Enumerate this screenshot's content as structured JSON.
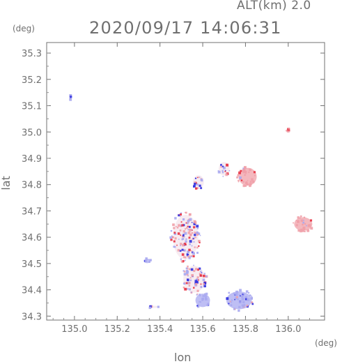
{
  "header": {
    "altitude_label": "ALT(km)  2.0",
    "timestamp": "2020/09/17 14:06:31"
  },
  "chart_data": {
    "type": "heatmap",
    "title": "2020/09/17 14:06:31",
    "xlabel": "lon",
    "ylabel": "lat",
    "x_unit": "(deg)",
    "y_unit": "(deg)",
    "xlim": [
      134.87,
      136.17
    ],
    "ylim": [
      34.285,
      35.34
    ],
    "xticks": [
      {
        "value": 135.0,
        "label": "135.0"
      },
      {
        "value": 135.2,
        "label": "135.2"
      },
      {
        "value": 135.4,
        "label": "135.4"
      },
      {
        "value": 135.6,
        "label": "135.6"
      },
      {
        "value": 135.8,
        "label": "135.8"
      },
      {
        "value": 136.0,
        "label": "136.0"
      }
    ],
    "yticks": [
      {
        "value": 34.3,
        "label": "34.3"
      },
      {
        "value": 34.4,
        "label": "34.4"
      },
      {
        "value": 34.5,
        "label": "34.5"
      },
      {
        "value": 34.6,
        "label": "34.6"
      },
      {
        "value": 34.7,
        "label": "34.7"
      },
      {
        "value": 34.8,
        "label": "34.8"
      },
      {
        "value": 34.9,
        "label": "34.9"
      },
      {
        "value": 35.0,
        "label": "35.0"
      },
      {
        "value": 35.1,
        "label": "35.1"
      },
      {
        "value": 35.2,
        "label": "35.2"
      },
      {
        "value": 35.3,
        "label": "35.3"
      }
    ],
    "grid": false,
    "colormap": {
      "positive": "#f0a0a8",
      "negative": "#a8a8f0",
      "strong_positive": "#e83040",
      "strong_negative": "#3030e0"
    },
    "echo_regions": [
      {
        "name": "northeast-patch",
        "lon": 135.81,
        "lat": 34.83,
        "rx": 0.05,
        "ry": 0.04,
        "sign": "positive"
      },
      {
        "name": "east-patch",
        "lon": 136.07,
        "lat": 34.65,
        "rx": 0.05,
        "ry": 0.03,
        "sign": "positive"
      },
      {
        "name": "far-northeast-speck",
        "lon": 136.0,
        "lat": 35.005,
        "rx": 0.012,
        "ry": 0.008,
        "sign": "positive"
      },
      {
        "name": "central-cluster",
        "lon": 135.52,
        "lat": 34.6,
        "rx": 0.07,
        "ry": 0.1,
        "sign": "mixed"
      },
      {
        "name": "south-cluster",
        "lon": 135.56,
        "lat": 34.44,
        "rx": 0.06,
        "ry": 0.06,
        "sign": "mixed"
      },
      {
        "name": "southeast-patch",
        "lon": 135.77,
        "lat": 34.36,
        "rx": 0.07,
        "ry": 0.04,
        "sign": "negative"
      },
      {
        "name": "south-central-patch",
        "lon": 135.6,
        "lat": 34.36,
        "rx": 0.04,
        "ry": 0.03,
        "sign": "negative"
      },
      {
        "name": "west-speck",
        "lon": 135.34,
        "lat": 34.51,
        "rx": 0.02,
        "ry": 0.01,
        "sign": "negative"
      },
      {
        "name": "southwest-streak",
        "lon": 135.37,
        "lat": 34.335,
        "rx": 0.025,
        "ry": 0.005,
        "sign": "mixed"
      },
      {
        "name": "north-fragments",
        "lon": 135.58,
        "lat": 34.81,
        "rx": 0.03,
        "ry": 0.03,
        "sign": "mixed"
      },
      {
        "name": "mid-east-cluster",
        "lon": 135.7,
        "lat": 34.86,
        "rx": 0.03,
        "ry": 0.03,
        "sign": "mixed"
      },
      {
        "name": "far-northwest-speck",
        "lon": 134.98,
        "lat": 35.13,
        "rx": 0.004,
        "ry": 0.01,
        "sign": "negative"
      }
    ]
  }
}
